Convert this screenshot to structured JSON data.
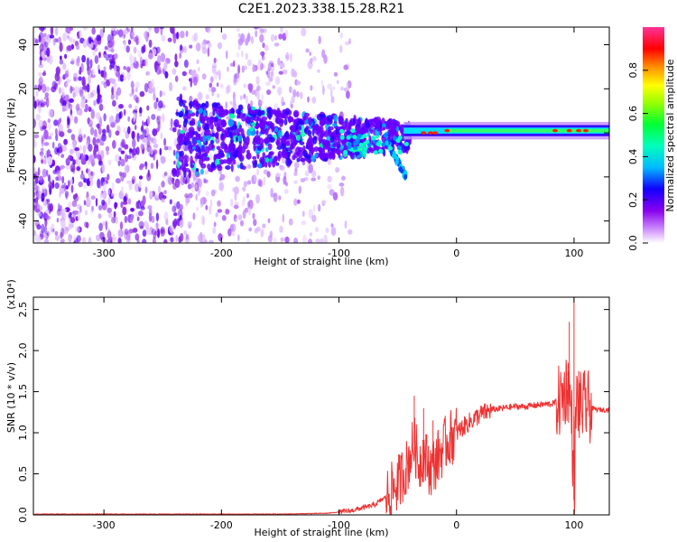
{
  "title": "C2E1.2023.338.15.28.R21",
  "chart_data": [
    {
      "type": "heatmap",
      "xlabel": "Height of straight line (km)",
      "ylabel": "Frequency (Hz)",
      "xlim": [
        -360,
        130
      ],
      "ylim": [
        -50,
        48
      ],
      "xticks": [
        -300,
        -200,
        -100,
        0,
        100
      ],
      "yticks": [
        -40,
        -20,
        0,
        20,
        40
      ],
      "xtick_labels": [
        "-300",
        "-200",
        "-100",
        "0",
        "100"
      ],
      "ytick_labels": [
        "-40",
        "-20",
        "0",
        "20",
        "40"
      ],
      "colorbar": {
        "label": "Normalized spectral amplitude",
        "range": [
          0,
          1
        ],
        "ticks": [
          0.0,
          0.2,
          0.4,
          0.6,
          0.8
        ],
        "tick_labels": [
          "0.0",
          "0.2",
          "0.4",
          "0.6",
          "0.8"
        ],
        "colormap": [
          "#ffffff",
          "#cc66ff",
          "#7700ee",
          "#0000ff",
          "#00ddff",
          "#00ff66",
          "#ffff00",
          "#ff8800",
          "#ff0000",
          "#ff3399"
        ]
      },
      "description_regions": {
        "noise_x_range": [
          -360,
          -100
        ],
        "signal_line_x_range": [
          -40,
          130
        ],
        "signal_freq_hz": 1
      }
    },
    {
      "type": "line",
      "xlabel": "Height of straight line (km)",
      "ylabel": "SNR (10 * v/v)",
      "yscale_label": "(x10⁴)",
      "xlim": [
        -360,
        130
      ],
      "ylim": [
        0,
        2.65
      ],
      "xticks": [
        -300,
        -200,
        -100,
        0,
        100
      ],
      "yticks": [
        0.0,
        0.5,
        1.0,
        1.5,
        2.0,
        2.5
      ],
      "xtick_labels": [
        "-300",
        "-200",
        "-100",
        "0",
        "100"
      ],
      "ytick_labels": [
        "0.0",
        "0.5",
        "1.0",
        "1.5",
        "2.0",
        "2.5"
      ],
      "color": "#ee3333",
      "series": [
        {
          "x": [
            -360,
            -300,
            -200,
            -150,
            -110,
            -90,
            -70,
            -60,
            -50,
            -42,
            -36,
            -32,
            -28,
            -22,
            -15,
            -8,
            0,
            10,
            20,
            30,
            40,
            50,
            60,
            70,
            80,
            88,
            92,
            95,
            98,
            100,
            102,
            105,
            110,
            115,
            120,
            125,
            130
          ],
          "y": [
            0.01,
            0.01,
            0.01,
            0.01,
            0.02,
            0.05,
            0.12,
            0.22,
            0.38,
            0.6,
            0.88,
            0.62,
            0.75,
            0.55,
            0.72,
            0.9,
            1.0,
            1.12,
            1.22,
            1.28,
            1.3,
            1.32,
            1.32,
            1.34,
            1.35,
            1.38,
            1.5,
            1.6,
            1.2,
            0.2,
            1.4,
            1.3,
            1.32,
            1.3,
            1.28,
            1.28,
            1.28
          ],
          "spikes": [
            {
              "x": -36,
              "y": 1.45
            },
            {
              "x": -28,
              "y": 1.3
            },
            {
              "x": -20,
              "y": 1.15
            },
            {
              "x": 96,
              "y": 2.35
            },
            {
              "x": 100,
              "y": 2.65
            },
            {
              "x": 104,
              "y": 1.75
            },
            {
              "x": 110,
              "y": 1.55
            }
          ]
        }
      ]
    }
  ]
}
